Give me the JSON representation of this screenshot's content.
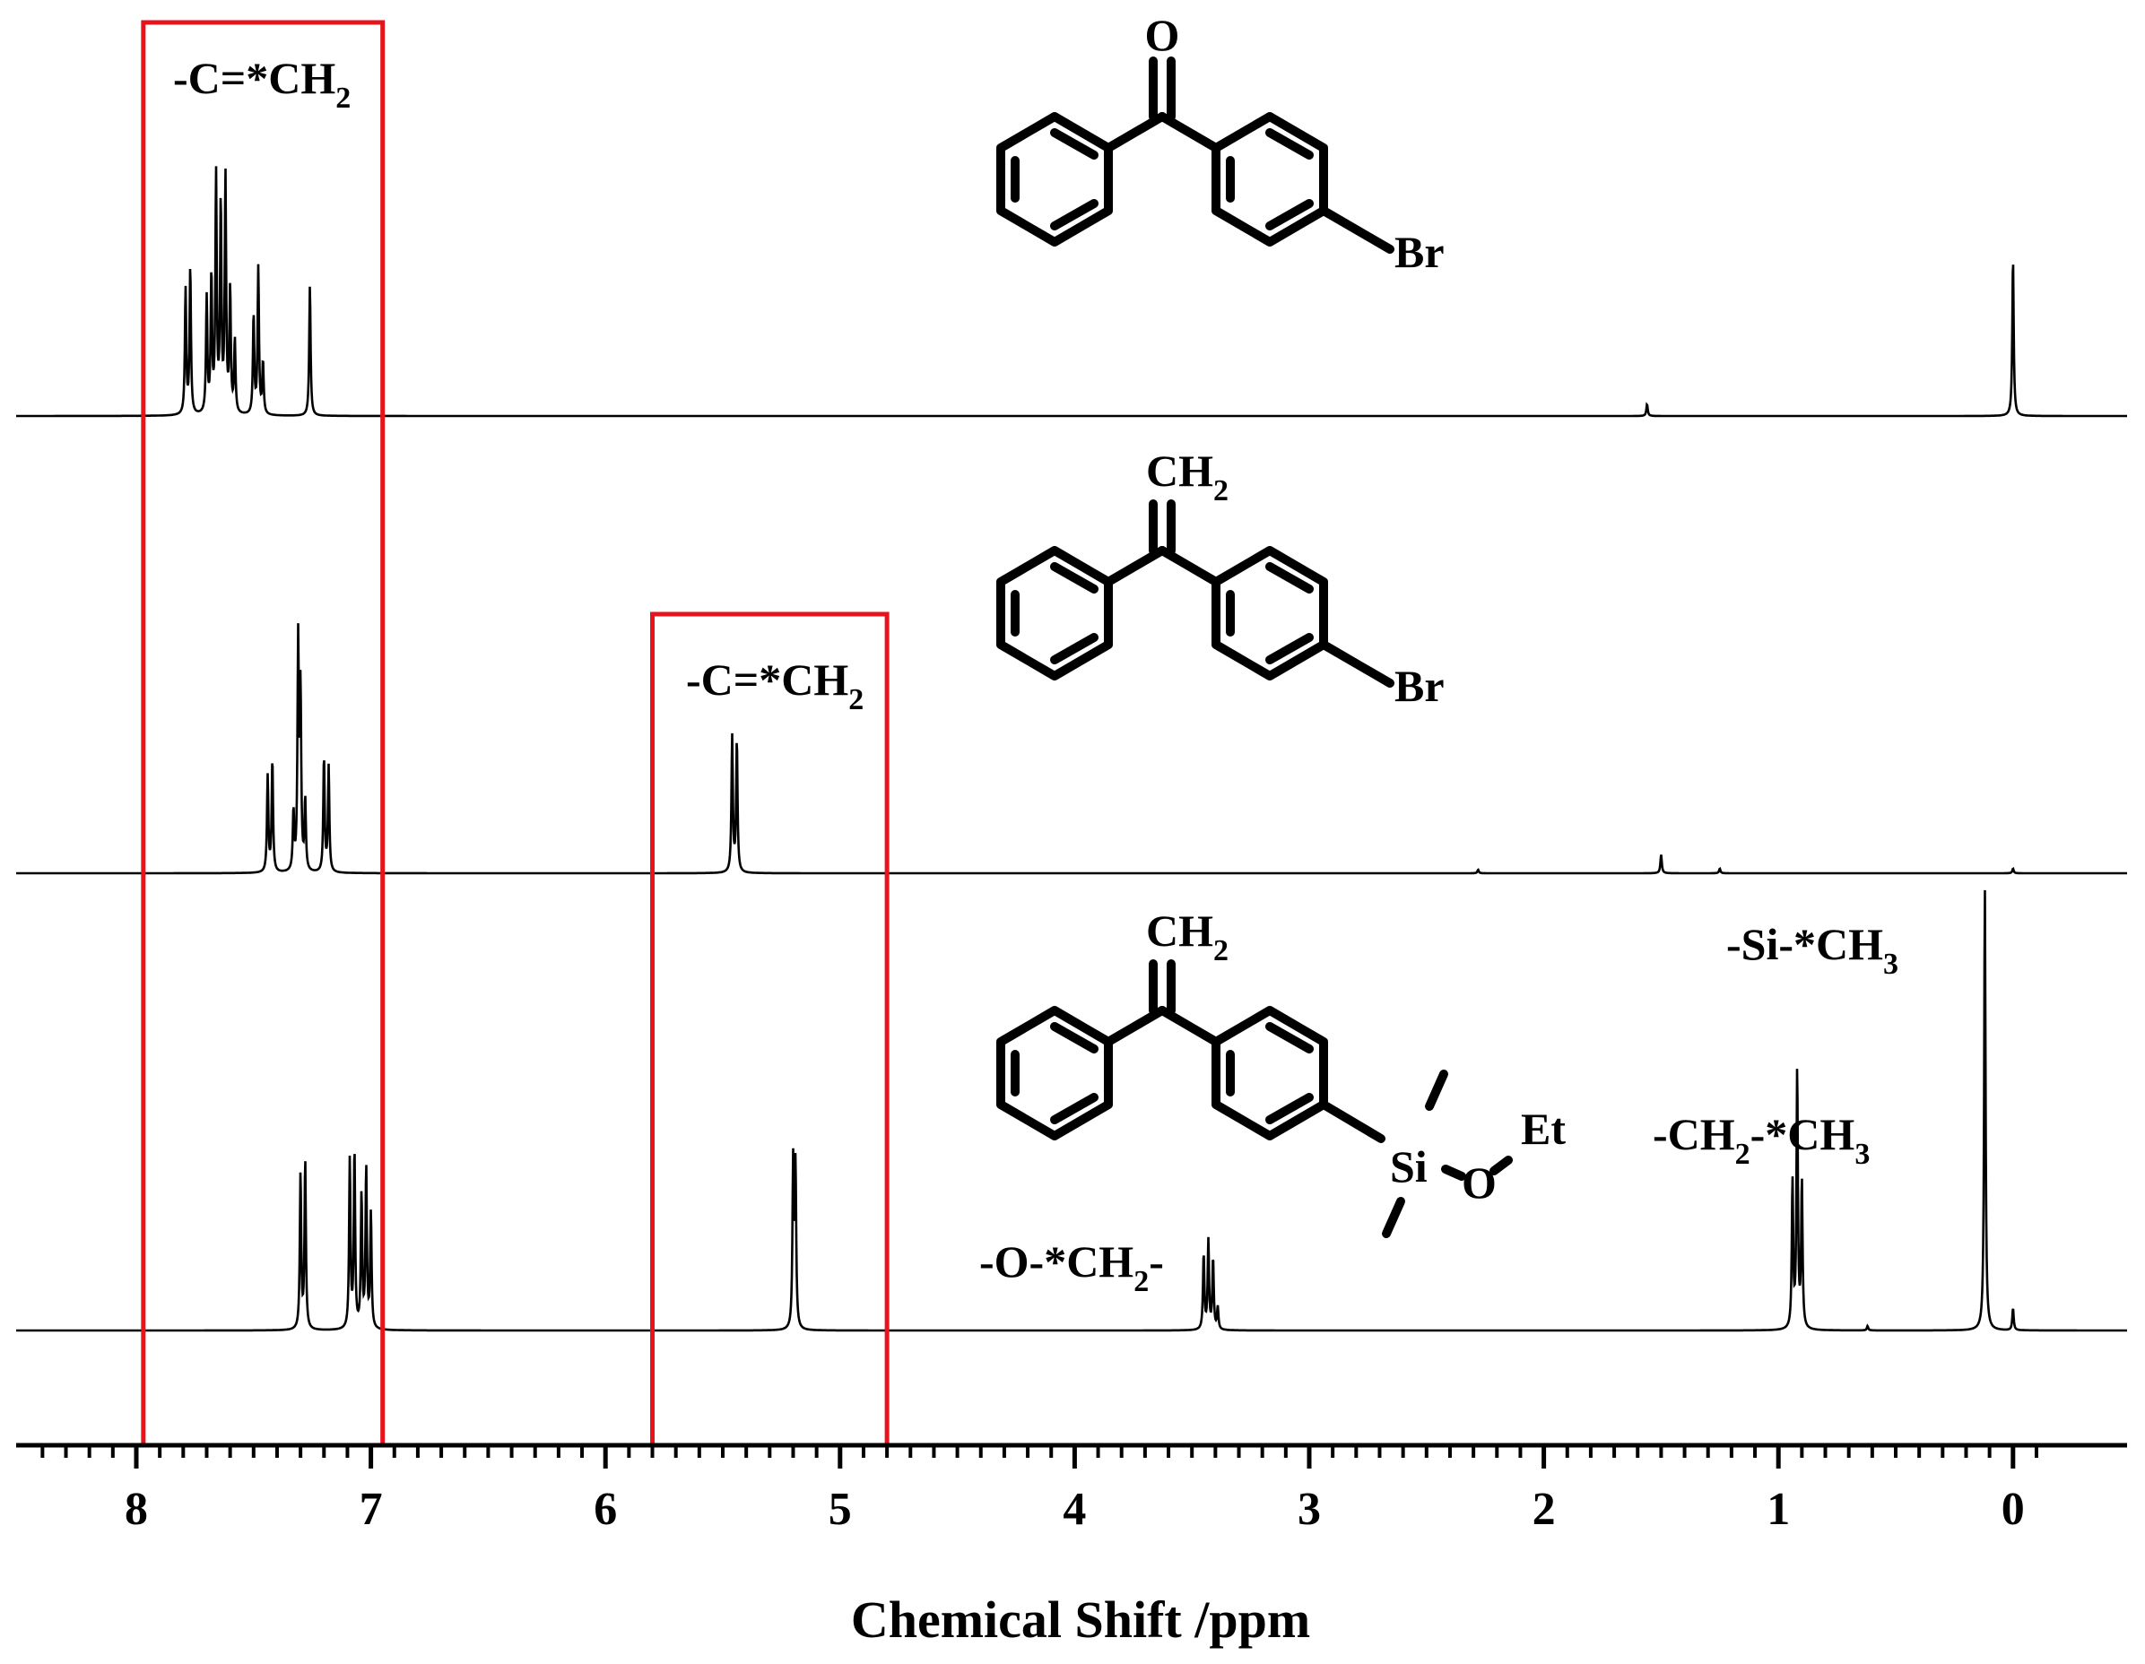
{
  "chart_data": {
    "type": "line",
    "xlabel": "Chemical Shift /ppm",
    "xlim": [
      8.55,
      -0.45
    ],
    "x_reversed": true,
    "x_major_ticks": [
      8,
      7,
      6,
      5,
      4,
      3,
      2,
      1,
      0
    ],
    "x_minor_step": 0.1,
    "grid": false,
    "highlight_ranges_ppm": [
      [
        7.97,
        6.95
      ],
      [
        5.8,
        4.8
      ]
    ],
    "series": [
      {
        "peaks": [
          {
            "ppm": 7.79,
            "h": 0.53
          },
          {
            "ppm": 7.77,
            "h": 0.62
          },
          {
            "ppm": 7.7,
            "h": 0.49
          },
          {
            "ppm": 7.68,
            "h": 0.58
          },
          {
            "ppm": 7.66,
            "h": 1.0
          },
          {
            "ppm": 7.64,
            "h": 0.88
          },
          {
            "ppm": 7.62,
            "h": 1.0
          },
          {
            "ppm": 7.6,
            "h": 0.52
          },
          {
            "ppm": 7.58,
            "h": 0.31
          },
          {
            "ppm": 7.5,
            "h": 0.42
          },
          {
            "ppm": 7.48,
            "h": 0.62
          },
          {
            "ppm": 7.46,
            "h": 0.22
          },
          {
            "ppm": 7.26,
            "h": 0.55
          },
          {
            "ppm": 1.56,
            "h": 0.05
          },
          {
            "ppm": 0.0,
            "h": 0.67
          }
        ]
      },
      {
        "peaks": [
          {
            "ppm": 7.44,
            "h": 0.41
          },
          {
            "ppm": 7.42,
            "h": 0.48
          },
          {
            "ppm": 7.33,
            "h": 0.25
          },
          {
            "ppm": 7.31,
            "h": 0.97
          },
          {
            "ppm": 7.3,
            "h": 0.75
          },
          {
            "ppm": 7.28,
            "h": 0.3
          },
          {
            "ppm": 7.2,
            "h": 0.49
          },
          {
            "ppm": 7.18,
            "h": 0.45
          },
          {
            "ppm": 5.46,
            "h": 0.58
          },
          {
            "ppm": 5.44,
            "h": 0.56
          },
          {
            "ppm": 2.28,
            "h": 0.015
          },
          {
            "ppm": 1.5,
            "h": 0.08
          },
          {
            "ppm": 1.25,
            "h": 0.02
          },
          {
            "ppm": 0.0,
            "h": 0.02
          }
        ]
      },
      {
        "peaks": [
          {
            "ppm": 7.3,
            "h": 0.35
          },
          {
            "ppm": 7.28,
            "h": 0.38
          },
          {
            "ppm": 7.09,
            "h": 0.38
          },
          {
            "ppm": 7.07,
            "h": 0.4
          },
          {
            "ppm": 7.04,
            "h": 0.3
          },
          {
            "ppm": 7.02,
            "h": 0.36
          },
          {
            "ppm": 7.0,
            "h": 0.26
          },
          {
            "ppm": 5.2,
            "h": 0.37
          },
          {
            "ppm": 5.19,
            "h": 0.36
          },
          {
            "ppm": 3.45,
            "h": 0.17
          },
          {
            "ppm": 3.43,
            "h": 0.2
          },
          {
            "ppm": 3.41,
            "h": 0.16
          },
          {
            "ppm": 3.39,
            "h": 0.05
          },
          {
            "ppm": 0.94,
            "h": 0.33
          },
          {
            "ppm": 0.92,
            "h": 0.58
          },
          {
            "ppm": 0.9,
            "h": 0.33
          },
          {
            "ppm": 0.62,
            "h": 0.01
          },
          {
            "ppm": 0.12,
            "h": 1.0
          },
          {
            "ppm": 0.0,
            "h": 0.05
          }
        ]
      }
    ],
    "annotations": [
      {
        "main": "-C=*CH",
        "sub": "2"
      },
      {
        "main": "-C=*CH",
        "sub": "2"
      },
      {
        "main": "-Si-*CH",
        "sub": "3"
      },
      {
        "main": "-CH",
        "sub": "2",
        "main2": "-*CH",
        "sub2": "3"
      },
      {
        "main": "-O-*CH",
        "sub": "2",
        "main2": "-"
      }
    ]
  },
  "molecules": [
    {
      "top": "O",
      "sub": "",
      "subst": "Br"
    },
    {
      "top": "CH",
      "sub": "2",
      "subst": "Br"
    },
    {
      "top": "CH",
      "sub": "2",
      "subst": "Si",
      "o": "O",
      "et": "Et"
    }
  ],
  "colors": {
    "highlight": "#e8141c",
    "trace": "#000000"
  }
}
